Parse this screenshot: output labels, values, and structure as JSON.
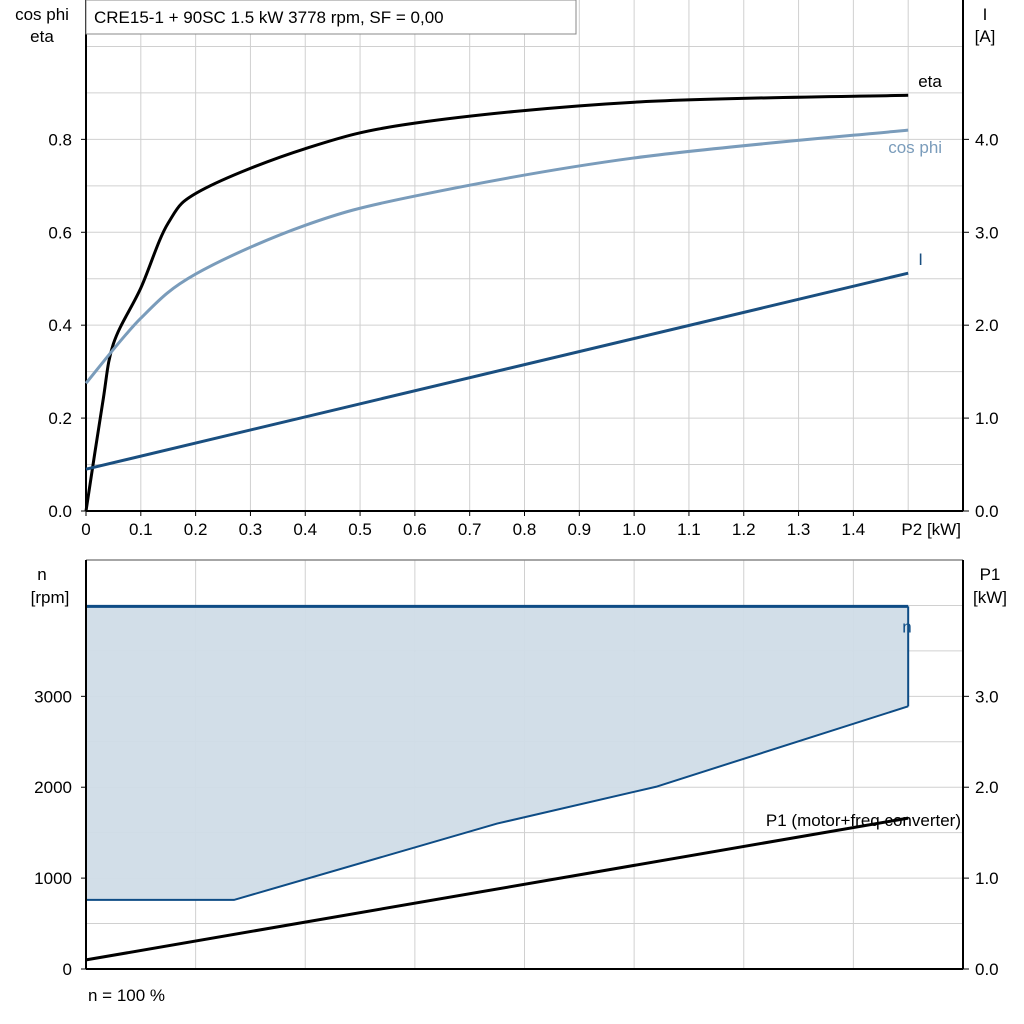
{
  "colors": {
    "eta": "#000000",
    "cos_phi": "#7a9cbb",
    "current": "#1a4f80",
    "n_line": "#0e4c85",
    "n_fill": "#d0dce7",
    "p1": "#000000",
    "grid": "#d0d0d0"
  },
  "chart_data": [
    {
      "type": "line",
      "title": "CRE15-1 + 90SC   1.5 kW   3778 rpm, SF = 0,00",
      "xlabel": "P2 [kW]",
      "ylabel_left": [
        "cos phi",
        "eta"
      ],
      "ylabel_right": [
        "I",
        "[A]"
      ],
      "xlim": [
        0,
        1.6
      ],
      "ylim_left": [
        0,
        1.1
      ],
      "ylim_right": [
        0,
        5.5
      ],
      "x_ticks": [
        "0",
        "0.1",
        "0.2",
        "0.3",
        "0.4",
        "0.5",
        "0.6",
        "0.7",
        "0.8",
        "0.9",
        "1.0",
        "1.1",
        "1.2",
        "1.3",
        "1.4"
      ],
      "y_ticks_left": [
        "0.0",
        "0.2",
        "0.4",
        "0.6",
        "0.8"
      ],
      "y_ticks_right": [
        "0.0",
        "1.0",
        "2.0",
        "3.0",
        "4.0"
      ],
      "grid": true,
      "series": [
        {
          "name": "eta",
          "axis": "left",
          "x": [
            0,
            0.03,
            0.05,
            0.1,
            0.15,
            0.21,
            0.4,
            0.6,
            1.0,
            1.5
          ],
          "y": [
            0,
            0.23,
            0.36,
            0.48,
            0.62,
            0.69,
            0.78,
            0.835,
            0.88,
            0.895
          ]
        },
        {
          "name": "cos phi",
          "axis": "left",
          "x": [
            0,
            0.1,
            0.2,
            0.4,
            0.6,
            1.0,
            1.5
          ],
          "y": [
            0.275,
            0.415,
            0.51,
            0.615,
            0.678,
            0.76,
            0.82
          ]
        },
        {
          "name": "I",
          "axis": "right",
          "x": [
            0,
            1.5
          ],
          "y": [
            0.45,
            2.56
          ]
        }
      ]
    },
    {
      "type": "area",
      "footer": "n = 100 %",
      "ylabel_left": [
        "n",
        "[rpm]"
      ],
      "ylabel_right": [
        "P1",
        "[kW]"
      ],
      "xlim": [
        0,
        1.6
      ],
      "ylim_left": [
        0,
        4500
      ],
      "ylim_right": [
        0,
        4.5
      ],
      "y_ticks_left": [
        "0",
        "1000",
        "2000",
        "3000"
      ],
      "y_ticks_right": [
        "0.0",
        "1.0",
        "2.0",
        "3.0"
      ],
      "grid": true,
      "series": [
        {
          "name": "n",
          "axis": "left",
          "upper": {
            "x": [
              0,
              1.5
            ],
            "y": [
              3990,
              3990
            ]
          },
          "lower": {
            "x": [
              0,
              0.27,
              0.75,
              1.04,
              1.5
            ],
            "y": [
              760,
              760,
              1600,
              2005,
              2890
            ]
          }
        },
        {
          "name": "P1 (motor+freq converter)",
          "axis": "right",
          "x": [
            0,
            1.5
          ],
          "y": [
            0.1,
            1.66
          ]
        }
      ]
    }
  ]
}
